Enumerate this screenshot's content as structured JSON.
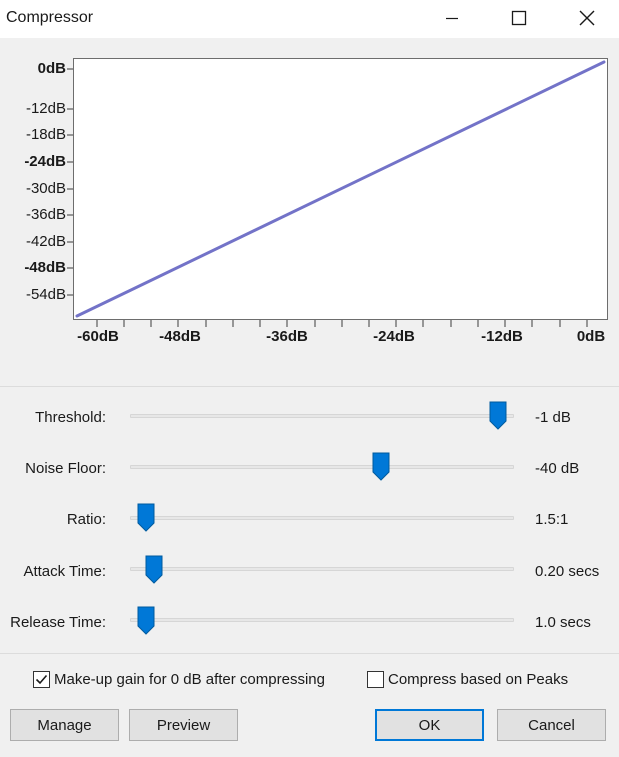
{
  "window": {
    "title": "Compressor"
  },
  "titlebar": {
    "minimize_icon": "minimize-icon",
    "maximize_icon": "maximize-icon",
    "close_icon": "close-icon"
  },
  "graph": {
    "y_labels": [
      "0dB",
      "-12dB",
      "-18dB",
      "-24dB",
      "-30dB",
      "-36dB",
      "-42dB",
      "-48dB",
      "-54dB"
    ],
    "x_labels": [
      "-60dB",
      "-48dB",
      "-36dB",
      "-24dB",
      "-12dB",
      "0dB"
    ],
    "line_color": "#7373c8",
    "x_range_db": [
      -60,
      0
    ],
    "y_range_db": [
      -60,
      0
    ],
    "curve": [
      [
        -60,
        -60
      ],
      [
        0,
        0
      ]
    ]
  },
  "sliders": {
    "threshold": {
      "label": "Threshold:",
      "value": "-1 dB",
      "fraction": 0.98
    },
    "noise_floor": {
      "label": "Noise Floor:",
      "value": "-40 dB",
      "fraction": 0.66
    },
    "ratio": {
      "label": "Ratio:",
      "value": "1.5:1",
      "fraction": 0.02
    },
    "attack": {
      "label": "Attack Time:",
      "value": "0.20 secs",
      "fraction": 0.04
    },
    "release": {
      "label": "Release Time:",
      "value": "1.0 secs",
      "fraction": 0.02
    }
  },
  "options": {
    "makeup": {
      "label": "Make-up gain for 0 dB after compressing",
      "checked": true
    },
    "peaks": {
      "label": "Compress based on Peaks",
      "checked": false
    }
  },
  "buttons": {
    "manage": "Manage",
    "preview": "Preview",
    "ok": "OK",
    "cancel": "Cancel"
  },
  "colors": {
    "accent": "#0078d7",
    "thumb": "#0078d7",
    "curve": "#7373c8"
  }
}
